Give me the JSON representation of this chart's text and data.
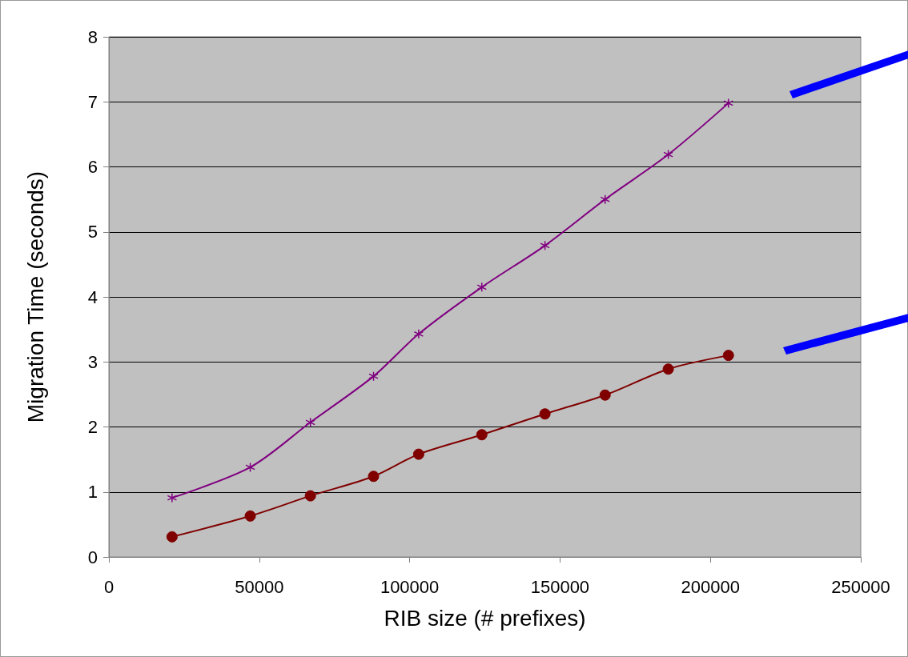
{
  "chart_data": {
    "type": "line",
    "xlabel": "RIB size (# prefixes)",
    "ylabel": "Migration Time (seconds)",
    "x": [
      21000,
      47000,
      67000,
      88000,
      103000,
      124000,
      145000,
      165000,
      186000,
      206000
    ],
    "series": [
      {
        "color": "#800080",
        "marker": "cross",
        "values": [
          0.91,
          1.38,
          2.07,
          2.78,
          3.43,
          4.15,
          4.79,
          5.5,
          6.19,
          6.98
        ]
      },
      {
        "color": "#800000",
        "marker": "circle",
        "values": [
          0.31,
          0.63,
          0.94,
          1.24,
          1.58,
          1.88,
          2.2,
          2.49,
          2.89,
          3.1
        ]
      }
    ],
    "xlim": [
      0,
      250000
    ],
    "xticks": [
      0,
      50000,
      100000,
      150000,
      200000,
      250000
    ],
    "ylim": [
      0,
      8
    ],
    "yticks": [
      0,
      1,
      2,
      3,
      4,
      5,
      6,
      7,
      8
    ],
    "grid": "y"
  }
}
